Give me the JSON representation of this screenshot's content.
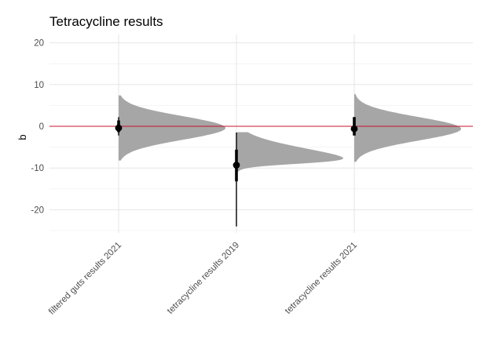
{
  "chart_data": {
    "type": "halfeye",
    "title": "Tetracycline results",
    "xlabel": "",
    "ylabel": "b",
    "ylim": [
      -26,
      22
    ],
    "yticks": [
      20,
      10,
      0,
      -10,
      -20
    ],
    "reference_line": {
      "y": 0,
      "color": "#c8102e"
    },
    "grid": true,
    "categories": [
      "filtered guts results 2021",
      "tetracycline results 2019",
      "tetracycline results 2021"
    ],
    "series": [
      {
        "category": "filtered guts results 2021",
        "point": -0.4,
        "interval_inner": [
          -1.4,
          1.4
        ],
        "interval_outer": [
          -2.2,
          2.2
        ],
        "distribution": {
          "mean": -0.4,
          "sd": 2.8,
          "min": -8.2,
          "max": 7.4,
          "skew": 0
        }
      },
      {
        "category": "tetracycline results 2019",
        "point": -9.3,
        "interval_inner": [
          -13.2,
          -5.6
        ],
        "interval_outer": [
          -24,
          -1.5
        ],
        "distribution": {
          "mean": -9.0,
          "sd": 3.5,
          "min": -27.3,
          "max": -1.4,
          "skew": 4.5
        }
      },
      {
        "category": "tetracycline results 2021",
        "point": -0.6,
        "interval_inner": [
          -2.2,
          2.2
        ],
        "interval_outer": [
          -2.2,
          2.2
        ],
        "distribution": {
          "mean": -0.6,
          "sd": 2.8,
          "min": -8.5,
          "max": 7.7,
          "skew": 0
        }
      }
    ],
    "colors": {
      "density": "#a6a6a6",
      "point": "#000000",
      "grid_major": "#e6e6e6",
      "grid_minor": "#f2f2f2"
    }
  }
}
